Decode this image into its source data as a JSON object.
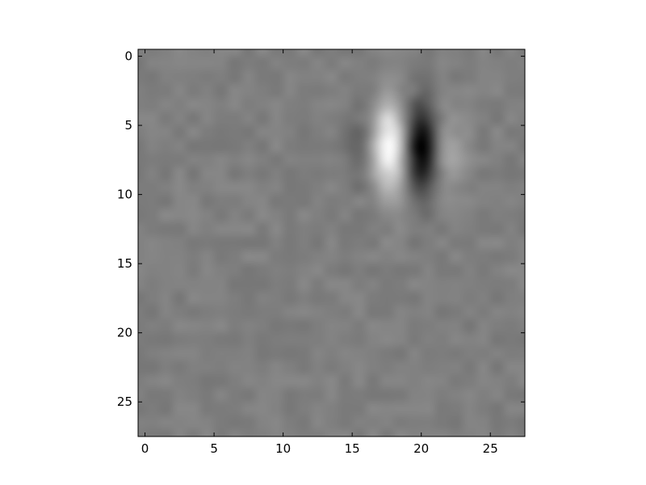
{
  "chart_data": {
    "type": "heatmap",
    "colormap": "gray",
    "grid": false,
    "legend": "none",
    "colorbar": false,
    "title": "",
    "xlabel": "",
    "ylabel": "",
    "x_ticks": [
      0,
      5,
      10,
      15,
      20,
      25
    ],
    "y_ticks": [
      0,
      5,
      10,
      15,
      20,
      25
    ],
    "x_tick_labels": [
      "0",
      "5",
      "10",
      "15",
      "20",
      "25"
    ],
    "y_tick_labels": [
      "0",
      "5",
      "10",
      "15",
      "20",
      "25"
    ],
    "xlim": [
      -0.5,
      27.5
    ],
    "ylim": [
      27.5,
      -0.5
    ],
    "y_axis_inverted": true,
    "grid_size": [
      28,
      28
    ],
    "background_value": 0.0,
    "value_range": [
      -1.0,
      1.0
    ],
    "features": [
      {
        "name": "dark-left-lobe",
        "center_x": 15.5,
        "center_y": 6.5,
        "sigma_x": 0.9,
        "sigma_y": 2.0,
        "amplitude": -0.22
      },
      {
        "name": "bright-lobe",
        "center_x": 17.7,
        "center_y": 6.5,
        "sigma_x": 0.9,
        "sigma_y": 2.3,
        "amplitude": 0.95
      },
      {
        "name": "dark-lobe",
        "center_x": 20.0,
        "center_y": 6.7,
        "sigma_x": 0.8,
        "sigma_y": 2.3,
        "amplitude": -1.0
      },
      {
        "name": "light-right-lobe",
        "center_x": 22.0,
        "center_y": 7.0,
        "sigma_x": 0.9,
        "sigma_y": 2.4,
        "amplitude": 0.25
      }
    ]
  }
}
